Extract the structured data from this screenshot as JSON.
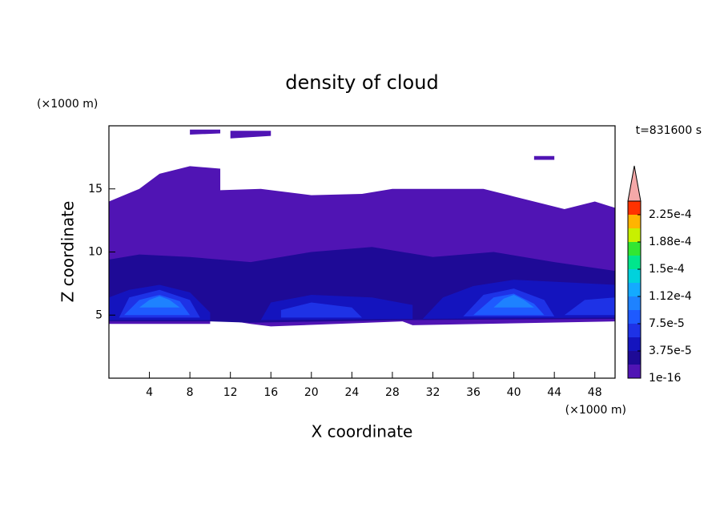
{
  "chart_data": {
    "type": "contour",
    "title": "density of cloud",
    "x_label": "X coordinate",
    "y_label": "Z coordinate",
    "x_unit_label": "(×1000 m)",
    "y_unit_label": "(×1000 m)",
    "annotation": "t=831600 s",
    "xlim": [
      0,
      50
    ],
    "ylim": [
      0,
      20
    ],
    "xticks": [
      4,
      8,
      12,
      16,
      20,
      24,
      28,
      32,
      36,
      40,
      44,
      48
    ],
    "yticks": [
      5,
      10,
      15
    ],
    "clim": [
      0,
      0.00024375
    ],
    "colors": [
      "#5014b4",
      "#1e0a96",
      "#1414be",
      "#1e32e6",
      "#1e5aff",
      "#1e82ff",
      "#14aaff",
      "#00d2dc",
      "#00e68c",
      "#32e632",
      "#c8f000",
      "#ffb400",
      "#ff3200"
    ],
    "extend_color": "#f4a8a8",
    "colorbar_ticks": [
      1e-16,
      {
        "value": 3.75e-05,
        "label": "3.75e-5"
      },
      {
        "value": 7.5e-05,
        "label": "7.5e-5"
      },
      {
        "value": 0.0001125,
        "label": "1.12e-4"
      },
      {
        "value": 0.00015,
        "label": "1.5e-4"
      },
      {
        "value": 0.0001875,
        "label": "1.88e-4"
      },
      {
        "value": 0.000225,
        "label": "2.25e-4"
      }
    ],
    "regions": [
      {
        "level": 1e-16,
        "points": [
          [
            0,
            4.3
          ],
          [
            10,
            4.3
          ],
          [
            10,
            4.8
          ],
          [
            14,
            4.3
          ],
          [
            16,
            4.1
          ],
          [
            29,
            4.5
          ],
          [
            30,
            4.2
          ],
          [
            50,
            4.5
          ],
          [
            50,
            13.5
          ],
          [
            48,
            14
          ],
          [
            45,
            13.4
          ],
          [
            40,
            14.4
          ],
          [
            37,
            15
          ],
          [
            28,
            15
          ],
          [
            25,
            14.6
          ],
          [
            20,
            14.5
          ],
          [
            15,
            15
          ],
          [
            11,
            14.9
          ],
          [
            11,
            16.6
          ],
          [
            8,
            16.8
          ],
          [
            5,
            16.2
          ],
          [
            3,
            15
          ],
          [
            0,
            14
          ]
        ]
      },
      {
        "level": 1e-16,
        "points": [
          [
            8,
            19.3
          ],
          [
            8,
            19.7
          ],
          [
            11,
            19.7
          ],
          [
            11,
            19.4
          ]
        ]
      },
      {
        "level": 1e-16,
        "points": [
          [
            12,
            19.0
          ],
          [
            12,
            19.6
          ],
          [
            16,
            19.6
          ],
          [
            16,
            19.2
          ]
        ]
      },
      {
        "level": 1e-16,
        "points": [
          [
            42,
            17.3
          ],
          [
            42,
            17.6
          ],
          [
            44,
            17.6
          ],
          [
            44,
            17.3
          ]
        ]
      },
      {
        "level": 2e-05,
        "points": [
          [
            0,
            4.5
          ],
          [
            10,
            4.5
          ],
          [
            14,
            4.4
          ],
          [
            29,
            4.6
          ],
          [
            50,
            4.7
          ],
          [
            50,
            8.5
          ],
          [
            44,
            9.2
          ],
          [
            38,
            10
          ],
          [
            32,
            9.6
          ],
          [
            26,
            10.4
          ],
          [
            20,
            10
          ],
          [
            14,
            9.2
          ],
          [
            8,
            9.6
          ],
          [
            3,
            9.8
          ],
          [
            0,
            9.4
          ]
        ]
      },
      {
        "level": 4e-05,
        "points": [
          [
            0,
            4.6
          ],
          [
            10,
            4.6
          ],
          [
            10,
            5.2
          ],
          [
            8,
            6.8
          ],
          [
            5,
            7.4
          ],
          [
            2,
            7
          ],
          [
            0,
            6.4
          ]
        ]
      },
      {
        "level": 4e-05,
        "points": [
          [
            15,
            4.6
          ],
          [
            30,
            4.7
          ],
          [
            30,
            5.8
          ],
          [
            26,
            6.4
          ],
          [
            20,
            6.6
          ],
          [
            16,
            6
          ]
        ]
      },
      {
        "level": 4e-05,
        "points": [
          [
            31,
            4.7
          ],
          [
            50,
            4.8
          ],
          [
            50,
            7.4
          ],
          [
            45,
            7.6
          ],
          [
            40,
            7.8
          ],
          [
            36,
            7.3
          ],
          [
            33,
            6.4
          ]
        ]
      },
      {
        "level": 6e-05,
        "points": [
          [
            1,
            4.8
          ],
          [
            9,
            4.8
          ],
          [
            8,
            6.2
          ],
          [
            5,
            7
          ],
          [
            2,
            6.4
          ]
        ]
      },
      {
        "level": 6e-05,
        "points": [
          [
            17,
            4.8
          ],
          [
            25,
            4.8
          ],
          [
            24,
            5.6
          ],
          [
            20,
            6
          ],
          [
            17,
            5.4
          ]
        ]
      },
      {
        "level": 6e-05,
        "points": [
          [
            35,
            4.9
          ],
          [
            44,
            4.9
          ],
          [
            43,
            6.2
          ],
          [
            40,
            7.1
          ],
          [
            37,
            6.6
          ]
        ]
      },
      {
        "level": 6e-05,
        "points": [
          [
            45,
            5
          ],
          [
            50,
            5
          ],
          [
            50,
            6.4
          ],
          [
            47,
            6.2
          ]
        ]
      },
      {
        "level": 9e-05,
        "points": [
          [
            1.5,
            5
          ],
          [
            8,
            5
          ],
          [
            7,
            6.1
          ],
          [
            5,
            6.6
          ],
          [
            3,
            6.2
          ]
        ]
      },
      {
        "level": 9e-05,
        "points": [
          [
            36,
            5
          ],
          [
            43,
            5
          ],
          [
            42,
            5.9
          ],
          [
            40,
            6.7
          ],
          [
            38,
            6.4
          ]
        ]
      },
      {
        "level": 0.00011,
        "points": [
          [
            3,
            5.6
          ],
          [
            7,
            5.6
          ],
          [
            6,
            6.2
          ],
          [
            5,
            6.5
          ],
          [
            4,
            6.2
          ]
        ]
      },
      {
        "level": 0.00011,
        "points": [
          [
            38,
            5.6
          ],
          [
            42,
            5.6
          ],
          [
            41,
            6.2
          ],
          [
            40,
            6.6
          ],
          [
            39,
            6.3
          ]
        ]
      }
    ]
  }
}
